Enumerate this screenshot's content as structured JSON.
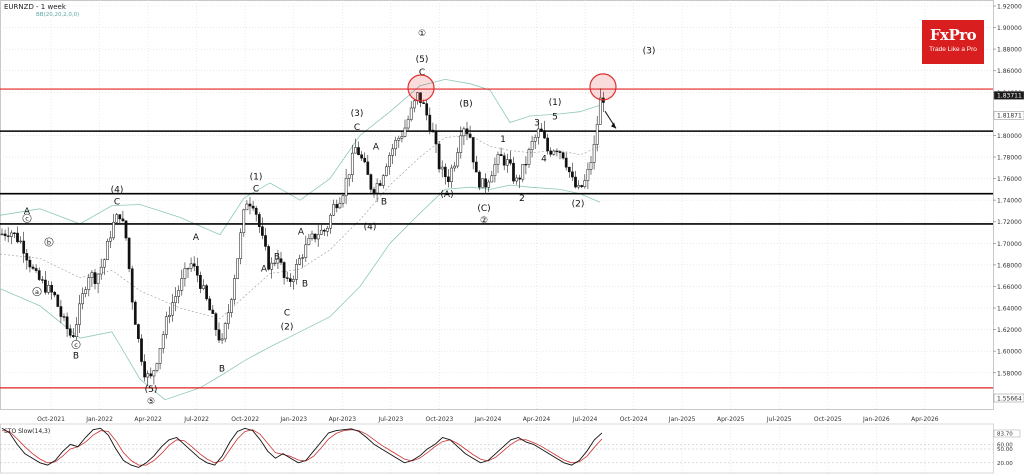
{
  "header": {
    "symbol": "EURNZD - 1 week",
    "indicator": "BB(20,20,2,0,0)",
    "sto_label": "STO Slow(14,3)"
  },
  "logo": {
    "brand": "FxPro",
    "tagline": "Trade Like a Pro",
    "color": "#d81e1e"
  },
  "chart_data": {
    "type": "candlestick",
    "title": "EURNZD - 1 week",
    "ylim": [
      1.5566,
      1.92
    ],
    "y_ticks": [
      "1.92000",
      "1.90000",
      "1.88000",
      "1.86000",
      "1.84000",
      "1.80000",
      "1.78000",
      "1.76000",
      "1.74000",
      "1.72000",
      "1.70000",
      "1.68000",
      "1.66000",
      "1.64000",
      "1.62000",
      "1.60000",
      "1.58000"
    ],
    "price_labels": [
      {
        "value": 1.8371,
        "label": "1.83711",
        "kind": "current"
      },
      {
        "value": 1.8187,
        "label": "1.81871",
        "kind": "level"
      },
      {
        "value": 1.5566,
        "label": "1.55664",
        "kind": "low"
      }
    ],
    "x_labels": [
      "Oct-2021",
      "Jan-2022",
      "Apr-2022",
      "Jul-2022",
      "Oct-2022",
      "Jan-2023",
      "Apr-2023",
      "Jul-2023",
      "Oct-2023",
      "Jan-2024",
      "Apr-2024",
      "Jul-2024",
      "Oct-2024",
      "Jan-2025",
      "Apr-2025",
      "Jul-2025",
      "Oct-2025",
      "Jan-2026",
      "Apr-2026"
    ],
    "horizontal_levels": [
      {
        "value": 1.843,
        "color": "#e02020"
      },
      {
        "value": 1.804,
        "color": "#000000"
      },
      {
        "value": 1.746,
        "color": "#000000"
      },
      {
        "value": 1.718,
        "color": "#000000"
      },
      {
        "value": 1.566,
        "color": "#e02020"
      }
    ],
    "price_path": [
      [
        0,
        1.708
      ],
      [
        10,
        1.712
      ],
      [
        22,
        1.7
      ],
      [
        35,
        1.67
      ],
      [
        45,
        1.66
      ],
      [
        55,
        1.65
      ],
      [
        62,
        1.63
      ],
      [
        72,
        1.612
      ],
      [
        80,
        1.64
      ],
      [
        88,
        1.672
      ],
      [
        96,
        1.668
      ],
      [
        104,
        1.684
      ],
      [
        112,
        1.715
      ],
      [
        120,
        1.728
      ],
      [
        126,
        1.705
      ],
      [
        132,
        1.65
      ],
      [
        138,
        1.612
      ],
      [
        144,
        1.583
      ],
      [
        150,
        1.572
      ],
      [
        156,
        1.59
      ],
      [
        162,
        1.612
      ],
      [
        170,
        1.64
      ],
      [
        180,
        1.66
      ],
      [
        190,
        1.682
      ],
      [
        198,
        1.67
      ],
      [
        206,
        1.648
      ],
      [
        214,
        1.626
      ],
      [
        222,
        1.606
      ],
      [
        230,
        1.645
      ],
      [
        238,
        1.69
      ],
      [
        246,
        1.74
      ],
      [
        254,
        1.738
      ],
      [
        262,
        1.704
      ],
      [
        270,
        1.676
      ],
      [
        278,
        1.69
      ],
      [
        286,
        1.66
      ],
      [
        294,
        1.672
      ],
      [
        302,
        1.69
      ],
      [
        310,
        1.702
      ],
      [
        318,
        1.71
      ],
      [
        326,
        1.712
      ],
      [
        334,
        1.735
      ],
      [
        342,
        1.746
      ],
      [
        350,
        1.77
      ],
      [
        356,
        1.79
      ],
      [
        364,
        1.772
      ],
      [
        372,
        1.75
      ],
      [
        380,
        1.758
      ],
      [
        388,
        1.78
      ],
      [
        396,
        1.794
      ],
      [
        404,
        1.805
      ],
      [
        412,
        1.824
      ],
      [
        418,
        1.838
      ],
      [
        424,
        1.826
      ],
      [
        432,
        1.805
      ],
      [
        440,
        1.768
      ],
      [
        448,
        1.76
      ],
      [
        456,
        1.78
      ],
      [
        462,
        1.812
      ],
      [
        470,
        1.8
      ],
      [
        476,
        1.762
      ],
      [
        484,
        1.752
      ],
      [
        492,
        1.768
      ],
      [
        500,
        1.78
      ],
      [
        508,
        1.774
      ],
      [
        516,
        1.756
      ],
      [
        524,
        1.77
      ],
      [
        532,
        1.792
      ],
      [
        540,
        1.806
      ],
      [
        548,
        1.785
      ],
      [
        556,
        1.79
      ],
      [
        564,
        1.782
      ],
      [
        572,
        1.758
      ],
      [
        578,
        1.748
      ],
      [
        586,
        1.758
      ],
      [
        594,
        1.788
      ],
      [
        600,
        1.832
      ],
      [
        605,
        1.837
      ]
    ],
    "bb_upper": [
      [
        0,
        1.726
      ],
      [
        40,
        1.732
      ],
      [
        80,
        1.718
      ],
      [
        112,
        1.735
      ],
      [
        140,
        1.736
      ],
      [
        180,
        1.724
      ],
      [
        220,
        1.708
      ],
      [
        244,
        1.742
      ],
      [
        270,
        1.756
      ],
      [
        300,
        1.74
      ],
      [
        330,
        1.76
      ],
      [
        360,
        1.8
      ],
      [
        390,
        1.822
      ],
      [
        420,
        1.846
      ],
      [
        445,
        1.852
      ],
      [
        470,
        1.848
      ],
      [
        490,
        1.842
      ],
      [
        510,
        1.812
      ],
      [
        530,
        1.818
      ],
      [
        560,
        1.82
      ],
      [
        580,
        1.822
      ],
      [
        600,
        1.828
      ]
    ],
    "bb_mid": [
      [
        0,
        1.69
      ],
      [
        40,
        1.686
      ],
      [
        80,
        1.668
      ],
      [
        112,
        1.675
      ],
      [
        140,
        1.656
      ],
      [
        180,
        1.64
      ],
      [
        220,
        1.63
      ],
      [
        246,
        1.652
      ],
      [
        270,
        1.672
      ],
      [
        300,
        1.676
      ],
      [
        330,
        1.694
      ],
      [
        360,
        1.722
      ],
      [
        390,
        1.754
      ],
      [
        420,
        1.78
      ],
      [
        445,
        1.798
      ],
      [
        470,
        1.8
      ],
      [
        490,
        1.79
      ],
      [
        510,
        1.786
      ],
      [
        530,
        1.784
      ],
      [
        560,
        1.786
      ],
      [
        580,
        1.782
      ],
      [
        600,
        1.79
      ]
    ],
    "bb_lower": [
      [
        0,
        1.658
      ],
      [
        40,
        1.642
      ],
      [
        80,
        1.612
      ],
      [
        112,
        1.618
      ],
      [
        140,
        1.574
      ],
      [
        165,
        1.555
      ],
      [
        200,
        1.566
      ],
      [
        222,
        1.578
      ],
      [
        246,
        1.592
      ],
      [
        270,
        1.604
      ],
      [
        300,
        1.618
      ],
      [
        330,
        1.632
      ],
      [
        360,
        1.66
      ],
      [
        390,
        1.7
      ],
      [
        420,
        1.728
      ],
      [
        445,
        1.75
      ],
      [
        470,
        1.752
      ],
      [
        490,
        1.75
      ],
      [
        510,
        1.754
      ],
      [
        530,
        1.752
      ],
      [
        560,
        1.75
      ],
      [
        580,
        1.746
      ],
      [
        600,
        1.738
      ]
    ],
    "sto_k": [
      95,
      85,
      60,
      40,
      30,
      20,
      15,
      25,
      45,
      60,
      55,
      75,
      92,
      95,
      80,
      50,
      25,
      15,
      10,
      20,
      35,
      55,
      70,
      75,
      60,
      45,
      30,
      20,
      15,
      35,
      65,
      88,
      95,
      90,
      70,
      45,
      30,
      40,
      30,
      20,
      25,
      45,
      65,
      85,
      90,
      92,
      94,
      88,
      75,
      60,
      50,
      40,
      30,
      20,
      25,
      35,
      50,
      60,
      75,
      70,
      55,
      40,
      30,
      20,
      25,
      40,
      55,
      70,
      75,
      65,
      60,
      50,
      40,
      30,
      20,
      15,
      25,
      45,
      70,
      85
    ],
    "sto_d": [
      90,
      88,
      72,
      55,
      40,
      28,
      20,
      22,
      35,
      50,
      55,
      65,
      80,
      90,
      88,
      68,
      42,
      25,
      15,
      15,
      25,
      40,
      58,
      70,
      68,
      55,
      40,
      28,
      20,
      25,
      48,
      72,
      88,
      92,
      82,
      62,
      42,
      38,
      34,
      26,
      24,
      34,
      52,
      72,
      84,
      90,
      92,
      90,
      82,
      70,
      58,
      48,
      38,
      28,
      24,
      30,
      42,
      55,
      66,
      70,
      62,
      50,
      38,
      28,
      24,
      32,
      46,
      60,
      70,
      70,
      64,
      56,
      46,
      36,
      26,
      20,
      22,
      34,
      54,
      72
    ],
    "sto_levels": [
      {
        "value": 83.7,
        "label": "83.70"
      },
      {
        "value": 60,
        "label": "60.00"
      },
      {
        "value": 50,
        "label": "50.00"
      },
      {
        "value": 20,
        "label": "20.00"
      }
    ],
    "sto_ylim": [
      0,
      100
    ],
    "wave_labels": [
      {
        "text": "A",
        "x": 27,
        "y": 1.727
      },
      {
        "text": "c",
        "x": 27,
        "y": 1.721,
        "circled": true
      },
      {
        "text": "b",
        "x": 49,
        "y": 1.699,
        "circled": true
      },
      {
        "text": "a",
        "x": 37,
        "y": 1.653,
        "circled": true
      },
      {
        "text": "c",
        "x": 76,
        "y": 1.604,
        "circled": true
      },
      {
        "text": "B",
        "x": 76,
        "y": 1.593
      },
      {
        "text": "(4)",
        "x": 117,
        "y": 1.747
      },
      {
        "text": "C",
        "x": 117,
        "y": 1.736
      },
      {
        "text": "(5)",
        "x": 151,
        "y": 1.562
      },
      {
        "text": "⑤",
        "x": 151,
        "y": 1.551
      },
      {
        "text": "A",
        "x": 196,
        "y": 1.703
      },
      {
        "text": "B",
        "x": 222,
        "y": 1.581
      },
      {
        "text": "(1)",
        "x": 256,
        "y": 1.759
      },
      {
        "text": "C",
        "x": 256,
        "y": 1.748
      },
      {
        "text": "A",
        "x": 264,
        "y": 1.674
      },
      {
        "text": "B",
        "x": 277,
        "y": 1.685
      },
      {
        "text": "C",
        "x": 287,
        "y": 1.633
      },
      {
        "text": "(2)",
        "x": 287,
        "y": 1.62
      },
      {
        "text": "A",
        "x": 301,
        "y": 1.708
      },
      {
        "text": "B",
        "x": 305,
        "y": 1.66
      },
      {
        "text": "(4)",
        "x": 370,
        "y": 1.713
      },
      {
        "text": "A",
        "x": 376,
        "y": 1.787
      },
      {
        "text": "B",
        "x": 384,
        "y": 1.736
      },
      {
        "text": "(3)",
        "x": 357,
        "y": 1.818
      },
      {
        "text": "C",
        "x": 357,
        "y": 1.805
      },
      {
        "text": "①",
        "x": 422,
        "y": 1.892
      },
      {
        "text": "(5)",
        "x": 422,
        "y": 1.868
      },
      {
        "text": "C",
        "x": 422,
        "y": 1.856
      },
      {
        "text": "(A)",
        "x": 447,
        "y": 1.743
      },
      {
        "text": "(B)",
        "x": 466,
        "y": 1.827
      },
      {
        "text": "1",
        "x": 503,
        "y": 1.794
      },
      {
        "text": "(C)",
        "x": 484,
        "y": 1.73
      },
      {
        "text": "②",
        "x": 484,
        "y": 1.719
      },
      {
        "text": "2",
        "x": 522,
        "y": 1.739
      },
      {
        "text": "3",
        "x": 537,
        "y": 1.809
      },
      {
        "text": "4",
        "x": 544,
        "y": 1.776
      },
      {
        "text": "(1)",
        "x": 555,
        "y": 1.828
      },
      {
        "text": "5",
        "x": 555,
        "y": 1.815
      },
      {
        "text": "(2)",
        "x": 578,
        "y": 1.734
      },
      {
        "text": "(3)",
        "x": 649,
        "y": 1.876
      }
    ],
    "highlight_circles": [
      {
        "x": 421,
        "y": 1.844
      },
      {
        "x": 603,
        "y": 1.845
      }
    ],
    "arrow": {
      "from": [
        605,
        1.8225
      ],
      "to": [
        616,
        1.8065
      ]
    }
  }
}
